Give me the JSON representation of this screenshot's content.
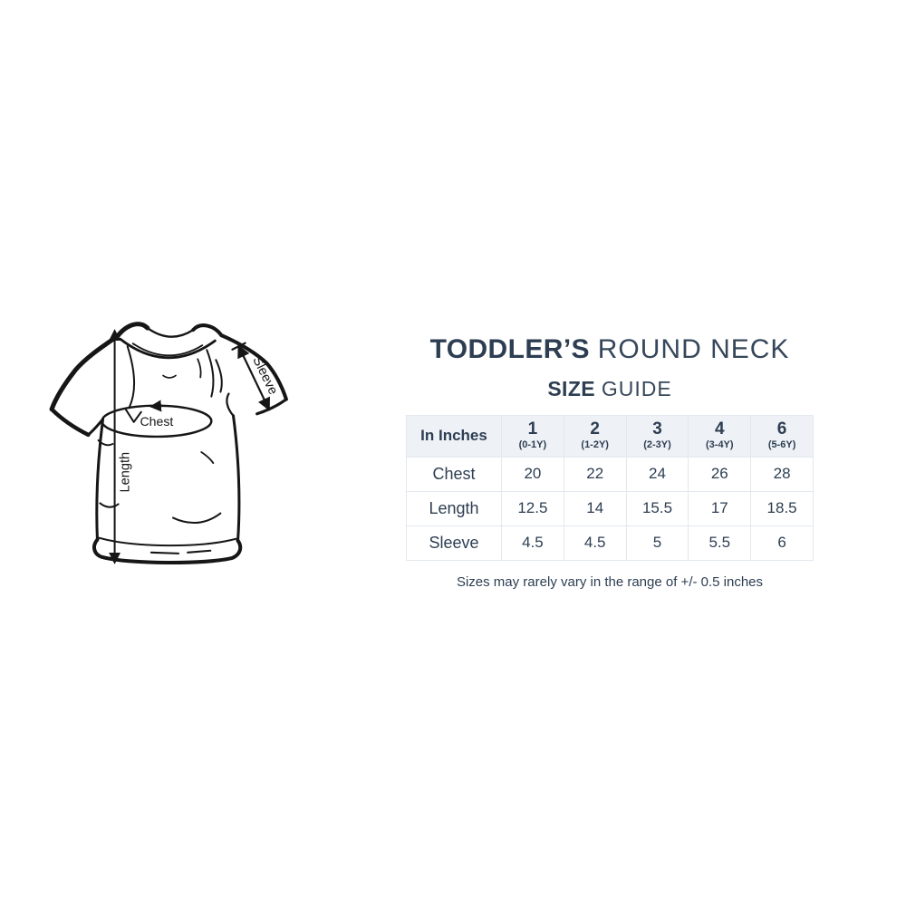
{
  "header": {
    "title_bold": "TODDLER’S",
    "title_light": "ROUND NECK",
    "subtitle_bold": "SIZE",
    "subtitle_light": "GUIDE"
  },
  "diagram": {
    "labels": {
      "sleeve": "Sleeve",
      "chest": "Chest",
      "length": "Length"
    }
  },
  "size_table": {
    "unit_header": "In Inches",
    "columns": [
      {
        "size": "1",
        "age": "(0-1Y)"
      },
      {
        "size": "2",
        "age": "(1-2Y)"
      },
      {
        "size": "3",
        "age": "(2-3Y)"
      },
      {
        "size": "4",
        "age": "(3-4Y)"
      },
      {
        "size": "6",
        "age": "(5-6Y)"
      }
    ],
    "rows": [
      {
        "label": "Chest",
        "values": [
          "20",
          "22",
          "24",
          "26",
          "28"
        ]
      },
      {
        "label": "Length",
        "values": [
          "12.5",
          "14",
          "15.5",
          "17",
          "18.5"
        ]
      },
      {
        "label": "Sleeve",
        "values": [
          "4.5",
          "4.5",
          "5",
          "5.5",
          "6"
        ]
      }
    ]
  },
  "footnote": "Sizes may rarely vary in the range of +/- 0.5 inches",
  "chart_data": {
    "type": "table",
    "title": "TODDLER’S ROUND NECK SIZE GUIDE",
    "unit": "In Inches",
    "columns": [
      "1 (0-1Y)",
      "2 (1-2Y)",
      "3 (2-3Y)",
      "4 (3-4Y)",
      "6 (5-6Y)"
    ],
    "rows": [
      {
        "label": "Chest",
        "values": [
          20,
          22,
          24,
          26,
          28
        ]
      },
      {
        "label": "Length",
        "values": [
          12.5,
          14,
          15.5,
          17,
          18.5
        ]
      },
      {
        "label": "Sleeve",
        "values": [
          4.5,
          4.5,
          5,
          5.5,
          6
        ]
      }
    ],
    "note": "Sizes may rarely vary in the range of +/- 0.5 inches"
  },
  "colors": {
    "text_navy": "#2d3e52",
    "text_navy_light": "#36475b",
    "table_header_bg": "#eef1f6",
    "table_border": "#e3e8ee",
    "ink": "#161616"
  }
}
